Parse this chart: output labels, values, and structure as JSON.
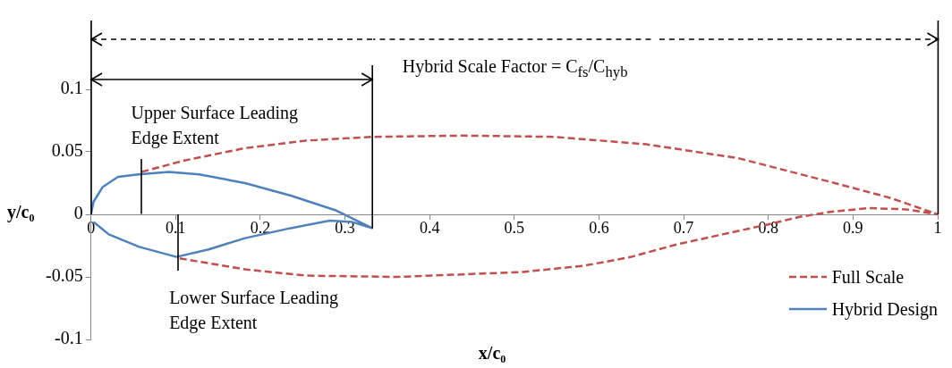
{
  "chart_data": {
    "type": "line",
    "xlabel": "x/c₀",
    "ylabel": "y/c₀",
    "xlim": [
      0,
      1
    ],
    "xticks": [
      0,
      0.1,
      0.2,
      0.3,
      0.4,
      0.5,
      0.6,
      0.7,
      0.8,
      0.9,
      1
    ],
    "ylim": [
      -0.1,
      0.155
    ],
    "yticks": [
      -0.1,
      -0.05,
      0,
      0.05,
      0.1
    ],
    "grid": false,
    "legend": "bottom right",
    "marker": "none",
    "series": [
      {
        "name": "Full Scale",
        "color": "#c0504d",
        "line_style": "dashed",
        "x": [
          0.06,
          0.11,
          0.182,
          0.254,
          0.332,
          0.439,
          0.547,
          0.656,
          0.764,
          0.873,
          0.945,
          1,
          0.963,
          0.919,
          0.873,
          0.837,
          0.8,
          0.746,
          0.692,
          0.638,
          0.583,
          0.511,
          0.439,
          0.361,
          0.254,
          0.182,
          0.103
        ],
        "values": [
          0.034,
          0.043,
          0.053,
          0.059,
          0.062,
          0.063,
          0.062,
          0.056,
          0.045,
          0.026,
          0.013,
          0,
          0.004,
          0.005,
          0.002,
          -0.002,
          -0.008,
          -0.016,
          -0.024,
          -0.034,
          -0.041,
          -0.046,
          -0.048,
          -0.05,
          -0.049,
          -0.044,
          -0.035
        ]
      },
      {
        "name": "Hybrid Design",
        "color": "#4f81bd",
        "line_style": "solid",
        "x": [
          0,
          0.003,
          0.014,
          0.032,
          0.056,
          0.092,
          0.128,
          0.182,
          0.236,
          0.29,
          0.332,
          0.308,
          0.282,
          0.236,
          0.182,
          0.139,
          0.101,
          0.057,
          0.021,
          0.003
        ],
        "values": [
          0,
          0.01,
          0.022,
          0.03,
          0.032,
          0.034,
          0.032,
          0.025,
          0.015,
          0.003,
          -0.011,
          -0.006,
          -0.005,
          -0.011,
          -0.019,
          -0.028,
          -0.034,
          -0.026,
          -0.016,
          -0.006
        ]
      }
    ],
    "annotations": [
      "Upper Surface Leading Edge Extent",
      "Lower Surface Leading Edge Extent",
      "Hybrid Scale Factor = C$_{fs}$/C$_{hyb}$"
    ]
  }
}
